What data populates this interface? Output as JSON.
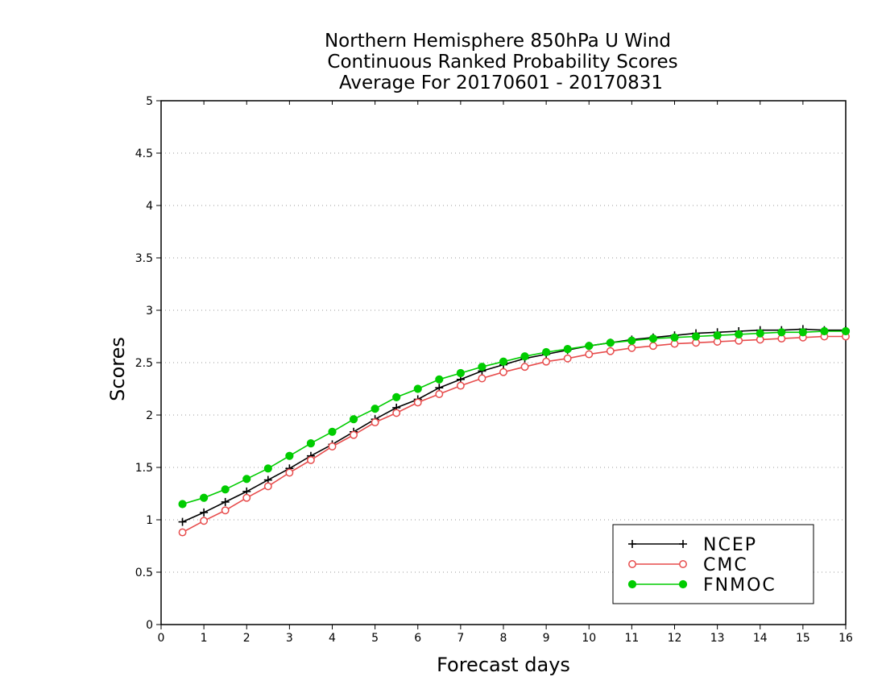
{
  "chart_data": {
    "type": "line",
    "title_lines": [
      "Northern Hemisphere 850hPa U Wind",
      "Continuous Ranked Probability Scores",
      "Average For 20170601 - 20170831"
    ],
    "xlabel": "Forecast days",
    "ylabel": "Scores",
    "xlim": [
      0,
      16
    ],
    "ylim": [
      0,
      5
    ],
    "xticks": [
      0,
      1,
      2,
      3,
      4,
      5,
      6,
      7,
      8,
      9,
      10,
      11,
      12,
      13,
      14,
      15,
      16
    ],
    "yticks": [
      0,
      0.5,
      1,
      1.5,
      2,
      2.5,
      3,
      3.5,
      4,
      4.5,
      5
    ],
    "ytick_labels": [
      "0",
      "0.5",
      "1",
      "1.5",
      "2",
      "2.5",
      "3",
      "3.5",
      "4",
      "4.5",
      "5"
    ],
    "grid": "horizontal dotted",
    "legend_position": "bottom-right",
    "x": [
      0.5,
      1,
      1.5,
      2,
      2.5,
      3,
      3.5,
      4,
      4.5,
      5,
      5.5,
      6,
      6.5,
      7,
      7.5,
      8,
      8.5,
      9,
      9.5,
      10,
      10.5,
      11,
      11.5,
      12,
      12.5,
      13,
      13.5,
      14,
      14.5,
      15,
      15.5,
      16
    ],
    "series": [
      {
        "name": "NCEP",
        "color": "#000000",
        "marker": "plus",
        "values": [
          0.98,
          1.07,
          1.17,
          1.27,
          1.38,
          1.49,
          1.61,
          1.72,
          1.84,
          1.96,
          2.07,
          2.15,
          2.26,
          2.34,
          2.42,
          2.48,
          2.54,
          2.58,
          2.62,
          2.66,
          2.69,
          2.72,
          2.74,
          2.76,
          2.78,
          2.79,
          2.8,
          2.81,
          2.81,
          2.82,
          2.81,
          2.81
        ]
      },
      {
        "name": "CMC",
        "color": "#e74c4c",
        "marker": "open-circle",
        "values": [
          0.88,
          0.99,
          1.09,
          1.21,
          1.32,
          1.45,
          1.57,
          1.7,
          1.81,
          1.93,
          2.02,
          2.12,
          2.2,
          2.28,
          2.35,
          2.41,
          2.46,
          2.51,
          2.54,
          2.58,
          2.61,
          2.64,
          2.66,
          2.68,
          2.69,
          2.7,
          2.71,
          2.72,
          2.73,
          2.74,
          2.75,
          2.75
        ]
      },
      {
        "name": "FNMOC",
        "color": "#00cc00",
        "marker": "filled-circle",
        "values": [
          1.15,
          1.21,
          1.29,
          1.39,
          1.49,
          1.61,
          1.73,
          1.84,
          1.96,
          2.06,
          2.17,
          2.25,
          2.34,
          2.4,
          2.46,
          2.51,
          2.56,
          2.6,
          2.63,
          2.66,
          2.69,
          2.71,
          2.73,
          2.74,
          2.75,
          2.76,
          2.77,
          2.78,
          2.79,
          2.79,
          2.8,
          2.8
        ]
      }
    ]
  }
}
